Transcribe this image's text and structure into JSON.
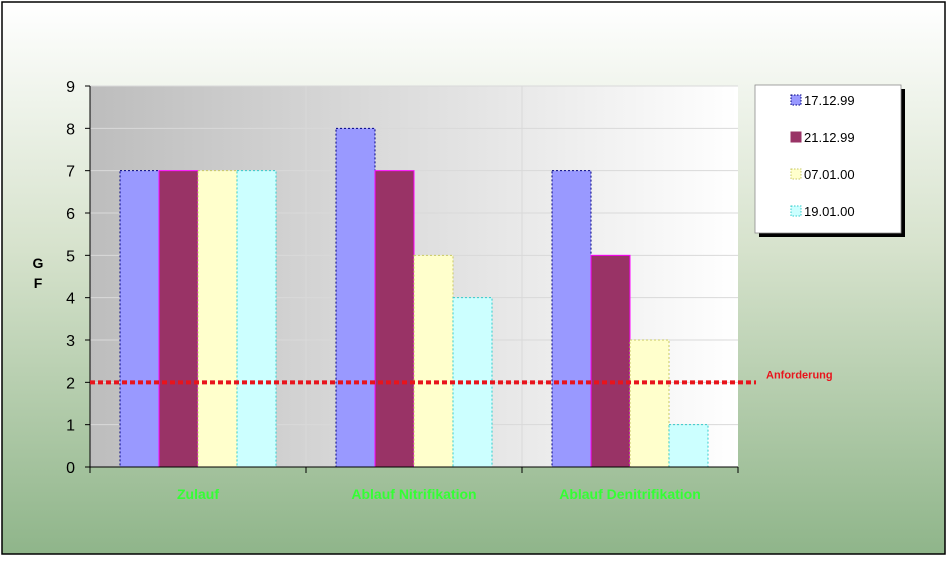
{
  "chart_data": {
    "type": "bar",
    "categories": [
      "Zulauf",
      "Ablauf Nitrifikation",
      "Ablauf Denitrifikation"
    ],
    "series": [
      {
        "name": "17.12.99",
        "values": [
          7,
          8,
          7
        ]
      },
      {
        "name": "21.12.99",
        "values": [
          7,
          7,
          5
        ]
      },
      {
        "name": "07.01.00",
        "values": [
          7,
          5,
          3
        ]
      },
      {
        "name": "19.01.00",
        "values": [
          7,
          4,
          1
        ]
      }
    ],
    "ylabel": "G F",
    "ylabel_lines": [
      "G",
      "F"
    ],
    "ylim": [
      0,
      9
    ],
    "yticks": [
      "0",
      "1",
      "2",
      "3",
      "4",
      "5",
      "6",
      "7",
      "8",
      "9"
    ],
    "reference_line": {
      "value": 2,
      "label": "Anforderung",
      "color": "#e8141c"
    },
    "legend_position": "right",
    "grid": true,
    "colors": {
      "series": [
        "#9999ff",
        "#993366",
        "#ffffcc",
        "#ccffff"
      ],
      "category_label": "#33ff33"
    }
  }
}
